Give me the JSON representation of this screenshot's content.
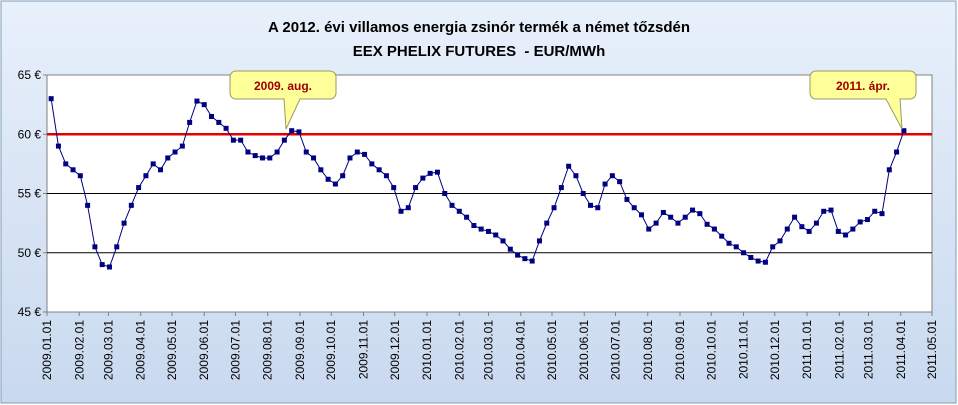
{
  "chart_data": {
    "type": "line",
    "title": "A 2012. évi villamos energia zsinór termék a német tőzsdén",
    "subtitle": "EEX PHELIX FUTURES  - EUR/MWh",
    "x": [
      "2009.01.05",
      "2009.01.12",
      "2009.01.19",
      "2009.01.26",
      "2009.02.02",
      "2009.02.09",
      "2009.02.16",
      "2009.02.23",
      "2009.03.02",
      "2009.03.09",
      "2009.03.16",
      "2009.03.23",
      "2009.03.30",
      "2009.04.06",
      "2009.04.13",
      "2009.04.20",
      "2009.04.27",
      "2009.05.04",
      "2009.05.11",
      "2009.05.18",
      "2009.05.25",
      "2009.06.01",
      "2009.06.08",
      "2009.06.15",
      "2009.06.22",
      "2009.06.29",
      "2009.07.06",
      "2009.07.13",
      "2009.07.20",
      "2009.07.27",
      "2009.08.03",
      "2009.08.10",
      "2009.08.17",
      "2009.08.24",
      "2009.08.31",
      "2009.09.07",
      "2009.09.14",
      "2009.09.21",
      "2009.09.28",
      "2009.10.05",
      "2009.10.12",
      "2009.10.19",
      "2009.10.26",
      "2009.11.02",
      "2009.11.09",
      "2009.11.16",
      "2009.11.23",
      "2009.11.30",
      "2009.12.07",
      "2009.12.14",
      "2009.12.21",
      "2009.12.28",
      "2010.01.04",
      "2010.01.11",
      "2010.01.18",
      "2010.01.25",
      "2010.02.01",
      "2010.02.08",
      "2010.02.15",
      "2010.02.22",
      "2010.03.01",
      "2010.03.08",
      "2010.03.15",
      "2010.03.22",
      "2010.03.29",
      "2010.04.05",
      "2010.04.12",
      "2010.04.19",
      "2010.04.26",
      "2010.05.03",
      "2010.05.10",
      "2010.05.17",
      "2010.05.24",
      "2010.05.31",
      "2010.06.07",
      "2010.06.14",
      "2010.06.21",
      "2010.06.28",
      "2010.07.05",
      "2010.07.12",
      "2010.07.19",
      "2010.07.26",
      "2010.08.02",
      "2010.08.09",
      "2010.08.16",
      "2010.08.23",
      "2010.08.30",
      "2010.09.06",
      "2010.09.13",
      "2010.09.20",
      "2010.09.27",
      "2010.10.04",
      "2010.10.11",
      "2010.10.18",
      "2010.10.25",
      "2010.11.01",
      "2010.11.08",
      "2010.11.15",
      "2010.11.22",
      "2010.11.29",
      "2010.12.06",
      "2010.12.13",
      "2010.12.20",
      "2010.12.27",
      "2011.01.03",
      "2011.01.10",
      "2011.01.17",
      "2011.01.24",
      "2011.01.31",
      "2011.02.07",
      "2011.02.14",
      "2011.02.21",
      "2011.02.28",
      "2011.03.07",
      "2011.03.14",
      "2011.03.21",
      "2011.03.28",
      "2011.04.04"
    ],
    "series": [
      {
        "color": "#000080",
        "values": [
          63,
          59,
          57.5,
          57,
          56.5,
          54,
          50.5,
          49,
          48.8,
          50.5,
          52.5,
          54,
          55.5,
          56.5,
          57.5,
          57,
          58,
          58.5,
          59,
          61,
          62.8,
          62.5,
          61.5,
          61,
          60.5,
          59.5,
          59.5,
          58.5,
          58.2,
          58,
          58,
          58.5,
          59.5,
          60.3,
          60.2,
          58.5,
          58,
          57,
          56.2,
          55.8,
          56.5,
          58,
          58.5,
          58.3,
          57.5,
          57,
          56.5,
          55.5,
          53.5,
          53.8,
          55.5,
          56.3,
          56.7,
          56.8,
          55,
          54,
          53.5,
          53,
          52.3,
          52,
          51.8,
          51.5,
          51,
          50.3,
          49.8,
          49.5,
          49.3,
          51,
          52.5,
          53.8,
          55.5,
          57.3,
          56.5,
          55,
          54,
          53.8,
          55.8,
          56.5,
          56,
          54.5,
          53.8,
          53.2,
          52,
          52.5,
          53.4,
          53,
          52.5,
          53,
          53.6,
          53.3,
          52.4,
          52,
          51.4,
          50.8,
          50.5,
          50,
          49.6,
          49.3,
          49.2,
          50.5,
          51,
          52,
          53,
          52.2,
          51.8,
          52.5,
          53.5,
          53.6,
          51.8,
          51.5,
          52,
          52.6,
          52.8,
          53.5,
          53.3,
          57,
          58.5,
          60.3
        ]
      }
    ],
    "xlim": [
      "2009.01.01",
      "2011.05.01"
    ],
    "xticks": [
      "2009.01.01",
      "2009.02.01",
      "2009.03.01",
      "2009.04.01",
      "2009.05.01",
      "2009.06.01",
      "2009.07.01",
      "2009.08.01",
      "2009.09.01",
      "2009.10.01",
      "2009.11.01",
      "2009.12.01",
      "2010.01.01",
      "2010.02.01",
      "2010.03.01",
      "2010.04.01",
      "2010.05.01",
      "2010.06.01",
      "2010.07.01",
      "2010.08.01",
      "2010.09.01",
      "2010.10.01",
      "2010.11.01",
      "2010.12.01",
      "2011.01.01",
      "2011.02.01",
      "2011.03.01",
      "2011.04.01",
      "2011.05.01"
    ],
    "ylim": [
      45,
      65
    ],
    "yticks": [
      {
        "value": 45,
        "label": "45 €"
      },
      {
        "value": 50,
        "label": "50 €"
      },
      {
        "value": 55,
        "label": "55 €"
      },
      {
        "value": 60,
        "label": "60 €"
      },
      {
        "value": 65,
        "label": "65 €"
      }
    ],
    "grid": true,
    "reference_line": {
      "value": 60,
      "color": "#e00000"
    },
    "annotations": [
      "2009. aug.",
      "2011. ápr."
    ]
  }
}
